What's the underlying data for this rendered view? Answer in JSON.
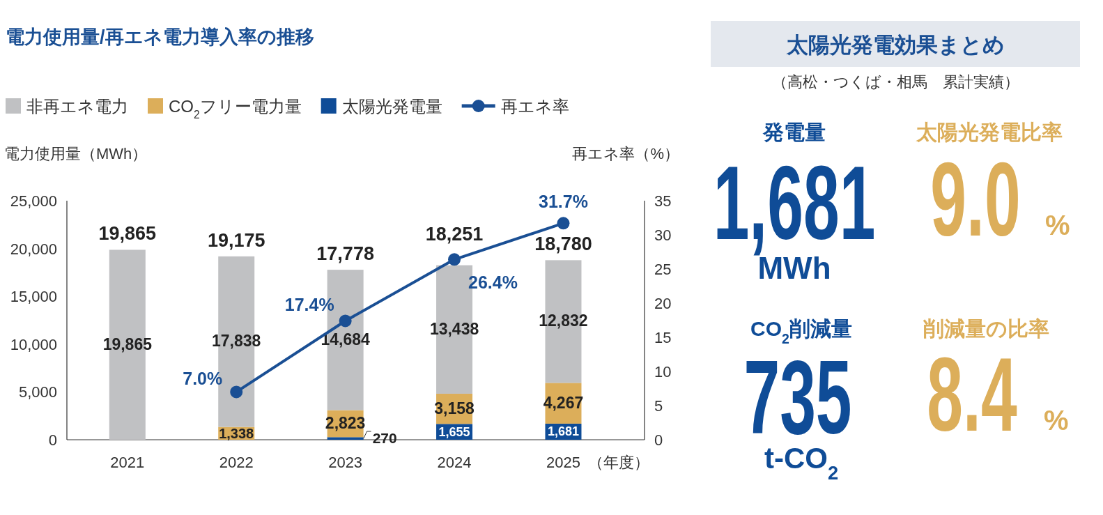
{
  "chart_data": [
    {
      "type": "bar",
      "stacked": true,
      "title": "電力使用量/再エネ電力導入率の推移",
      "xlabel": "（年度）",
      "ylabel": "電力使用量（MWh）",
      "y2label": "再エネ率（%）",
      "categories": [
        "2021",
        "2022",
        "2023",
        "2024",
        "2025"
      ],
      "ylim": [
        0,
        25000
      ],
      "yticks": [
        0,
        {
          "value": 5000,
          "label": "5,000"
        },
        {
          "value": 10000,
          "label": "10,000"
        },
        {
          "value": 15000,
          "label": "15,000"
        },
        {
          "value": 20000,
          "label": "20,000"
        },
        {
          "value": 25000,
          "label": "25,000"
        }
      ],
      "y2lim": [
        0,
        35
      ],
      "y2ticks": [
        0,
        5,
        10,
        15,
        20,
        25,
        30,
        35
      ],
      "legend": "top",
      "grid": false,
      "totals": [
        "19,865",
        "19,175",
        "17,778",
        "18,251",
        "18,780"
      ],
      "series": [
        {
          "name": "太陽光発電量",
          "color": "#0f4c97",
          "values": [
            null,
            null,
            270,
            1655,
            1681
          ],
          "value_labels": [
            null,
            null,
            "270",
            "1,655",
            "1,681"
          ]
        },
        {
          "name": "CO$_{2}$フリー電力量",
          "color": "#dcae5a",
          "values": [
            null,
            1338,
            2823,
            3158,
            4267
          ],
          "value_labels": [
            null,
            "1,338",
            "2,823",
            "3,158",
            "4,267"
          ]
        },
        {
          "name": "非再エネ電力",
          "color": "#c0c1c3",
          "values": [
            19865,
            17838,
            14684,
            13438,
            12832
          ],
          "value_labels": [
            "19,865",
            "17,838",
            "14,684",
            "13,438",
            "12,832"
          ]
        },
        {
          "name": "再エネ率",
          "type": "line",
          "axis": "y2",
          "color": "#1a4f94",
          "marker": "circle",
          "values": [
            null,
            7.0,
            17.4,
            26.4,
            31.7
          ],
          "value_labels": [
            null,
            "7.0%",
            "17.4%",
            "26.4%",
            "31.7%"
          ]
        }
      ]
    },
    {
      "type": "other",
      "title": "太陽光発電効果まとめ",
      "subtitle": "（高松・つくば・相馬　累計実績）",
      "annotations": [
        "発電量",
        "1,681",
        "MWh",
        "太陽光発電比率",
        "9.0",
        "%",
        "CO$_{2}$削減量",
        "735",
        "t-CO$_{2}$",
        "削減量の比率",
        "8.4",
        "%"
      ]
    }
  ]
}
